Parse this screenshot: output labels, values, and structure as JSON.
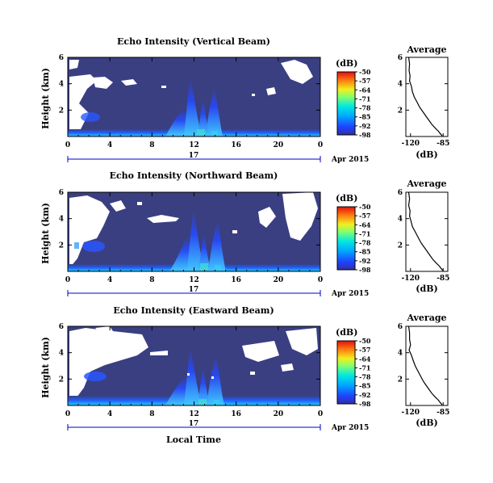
{
  "chart_data": [
    {
      "type": "heatmap",
      "title": "Echo Intensity (Vertical Beam)",
      "ylabel": "Height (km)",
      "xticks": [
        "0",
        "4",
        "8",
        "12",
        "16",
        "20",
        "0"
      ],
      "yticks": [
        "6",
        "4",
        "2"
      ],
      "xlim": [
        0,
        24
      ],
      "ylim": [
        0,
        6
      ],
      "date_day": "17",
      "date_month": "Apr 2015",
      "colorbar": {
        "unit": "(dB)",
        "ticks": [
          "-50",
          "-57",
          "-64",
          "-71",
          "-78",
          "-85",
          "-92",
          "-98"
        ]
      },
      "profile": {
        "title": "Average",
        "xlabel": "(dB)",
        "xticks": [
          "-120",
          "-85"
        ],
        "yticks": [
          "6",
          "4",
          "2"
        ],
        "xlim": [
          -125,
          -80
        ],
        "ylim": [
          0,
          6
        ],
        "x": [
          -122,
          -121,
          -121.5,
          -120.5,
          -121,
          -119,
          -118,
          -116,
          -113,
          -110,
          -106,
          -103,
          -100,
          -97,
          -93,
          -90,
          -88,
          -86
        ],
        "y": [
          6,
          5.5,
          5,
          4.6,
          4.2,
          3.8,
          3.4,
          3.0,
          2.6,
          2.2,
          1.8,
          1.5,
          1.2,
          0.9,
          0.6,
          0.4,
          0.2,
          0.05
        ]
      }
    },
    {
      "type": "heatmap",
      "title": "Echo Intensity (Northward Beam)",
      "ylabel": "Height (km)",
      "xticks": [
        "0",
        "4",
        "8",
        "12",
        "16",
        "20",
        "0"
      ],
      "yticks": [
        "6",
        "4",
        "2"
      ],
      "xlim": [
        0,
        24
      ],
      "ylim": [
        0,
        6
      ],
      "date_day": "17",
      "date_month": "Apr 2015",
      "colorbar": {
        "unit": "(dB)",
        "ticks": [
          "-50",
          "-57",
          "-64",
          "-71",
          "-78",
          "-85",
          "-92",
          "-98"
        ]
      },
      "profile": {
        "title": "Average",
        "xlabel": "(dB)",
        "xticks": [
          "-120",
          "-85"
        ],
        "yticks": [
          "6",
          "4",
          "2"
        ],
        "xlim": [
          -125,
          -80
        ],
        "ylim": [
          0,
          6
        ],
        "x": [
          -122,
          -121,
          -122,
          -120.5,
          -121,
          -119.5,
          -118,
          -115,
          -112,
          -109,
          -105,
          -102,
          -99,
          -96,
          -92,
          -89,
          -87,
          -85
        ],
        "y": [
          6,
          5.5,
          5,
          4.6,
          4.2,
          3.8,
          3.4,
          3.0,
          2.6,
          2.2,
          1.8,
          1.5,
          1.2,
          0.9,
          0.6,
          0.4,
          0.2,
          0.05
        ]
      }
    },
    {
      "type": "heatmap",
      "title": "Echo Intensity (Eastward Beam)",
      "ylabel": "Height (km)",
      "xlabel": "Local Time",
      "xticks": [
        "0",
        "4",
        "8",
        "12",
        "16",
        "20",
        "0"
      ],
      "yticks": [
        "6",
        "4",
        "2"
      ],
      "xlim": [
        0,
        24
      ],
      "ylim": [
        0,
        6
      ],
      "date_day": "17",
      "date_month": "Apr 2015",
      "colorbar": {
        "unit": "(dB)",
        "ticks": [
          "-50",
          "-57",
          "-64",
          "-71",
          "-78",
          "-85",
          "-92",
          "-98"
        ]
      },
      "profile": {
        "title": "Average",
        "xlabel": "(dB)",
        "xticks": [
          "-120",
          "-85"
        ],
        "yticks": [
          "6",
          "4",
          "2"
        ],
        "xlim": [
          -125,
          -80
        ],
        "ylim": [
          0,
          6
        ],
        "x": [
          -122,
          -121,
          -121,
          -120,
          -121.5,
          -119,
          -117,
          -115,
          -112,
          -109,
          -106,
          -103,
          -100,
          -97,
          -93,
          -90,
          -88,
          -86
        ],
        "y": [
          6,
          5.5,
          5,
          4.6,
          4.2,
          3.8,
          3.4,
          3.0,
          2.6,
          2.2,
          1.8,
          1.5,
          1.2,
          0.9,
          0.6,
          0.4,
          0.2,
          0.05
        ]
      }
    }
  ]
}
